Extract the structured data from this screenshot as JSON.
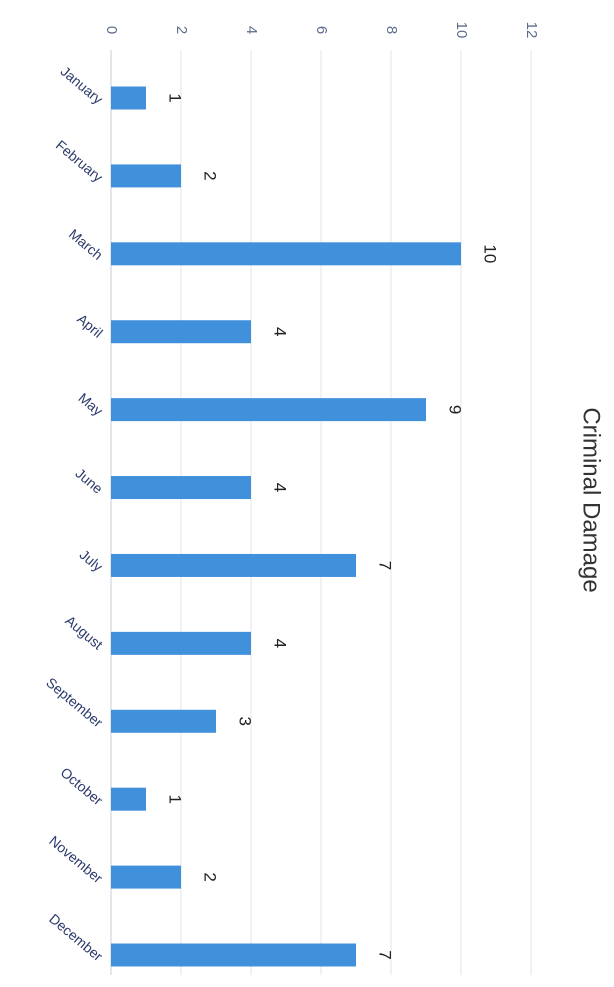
{
  "chart_data": {
    "type": "bar",
    "orientation": "horizontal",
    "title": "Criminal Damage",
    "categories": [
      "January",
      "February",
      "March",
      "April",
      "May",
      "June",
      "July",
      "August",
      "September",
      "October",
      "November",
      "December"
    ],
    "values": [
      1,
      2,
      10,
      4,
      9,
      4,
      7,
      4,
      3,
      1,
      2,
      7
    ],
    "color": "#4190dc",
    "ylim": [
      0,
      12
    ],
    "yticks": [
      0,
      2,
      4,
      6,
      8,
      10,
      12
    ],
    "grid": true
  }
}
